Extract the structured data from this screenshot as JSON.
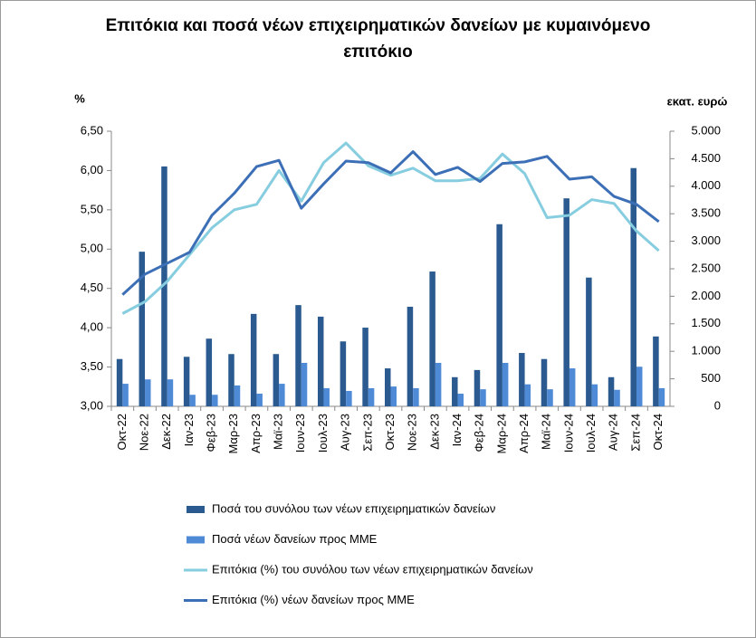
{
  "chart_data": {
    "type": "combo",
    "title": "Επιτόκια και ποσά νέων επιχειρηματικών δανείων με κυμαινόμενο επιτόκιο",
    "y_label": "%",
    "y2_label": "εκατ. ευρώ",
    "categories": [
      "Οκτ-22",
      "Νοε-22",
      "Δεκ-22",
      "Ιαν-23",
      "Φεβ-23",
      "Μαρ-23",
      "Απρ-23",
      "Μαϊ-23",
      "Ιουν-23",
      "Ιουλ-23",
      "Αυγ-23",
      "Σεπ-23",
      "Οκτ-23",
      "Νοε-23",
      "Δεκ-23",
      "Ιαν-24",
      "Φεβ-24",
      "Μαρ-24",
      "Απρ-24",
      "Μαϊ-24",
      "Ιουν-24",
      "Ιουλ-24",
      "Αυγ-24",
      "Σεπ-24",
      "Οκτ-24"
    ],
    "ylim": [
      3,
      6.5
    ],
    "yticks": [
      {
        "value": 3,
        "label": "3,00"
      },
      {
        "value": 3.5,
        "label": "3,50"
      },
      {
        "value": 4,
        "label": "4,00"
      },
      {
        "value": 4.5,
        "label": "4,50"
      },
      {
        "value": 5,
        "label": "5,00"
      },
      {
        "value": 5.5,
        "label": "5,50"
      },
      {
        "value": 6,
        "label": "6,00"
      },
      {
        "value": 6.5,
        "label": "6,50"
      }
    ],
    "y2lim": [
      0,
      5000
    ],
    "y2ticks": [
      0,
      500,
      {
        "value": 1000,
        "label": "1.000"
      },
      {
        "value": 1500,
        "label": "1.500"
      },
      {
        "value": 2000,
        "label": "2.000"
      },
      {
        "value": 2500,
        "label": "2.500"
      },
      {
        "value": 3000,
        "label": "3.000"
      },
      {
        "value": 3500,
        "label": "3.500"
      },
      {
        "value": 4000,
        "label": "4.000"
      },
      {
        "value": 4500,
        "label": "4.500"
      },
      {
        "value": 5000,
        "label": "5.000"
      }
    ],
    "series": [
      {
        "name": "Ποσά του συνόλου των νέων επιχειρηματικών δανείων",
        "type": "bar",
        "axis": "y2",
        "color": "#2a5a8f",
        "values": [
          860,
          2810,
          4360,
          900,
          1230,
          950,
          1680,
          950,
          1840,
          1630,
          1180,
          1430,
          690,
          1810,
          2450,
          530,
          660,
          3310,
          970,
          860,
          3780,
          2340,
          530,
          4330,
          1270
        ]
      },
      {
        "name": "Ποσά νέων δανείων προς ΜΜΕ",
        "type": "bar",
        "axis": "y2",
        "color": "#4f8ad6",
        "values": [
          410,
          490,
          490,
          210,
          210,
          380,
          230,
          410,
          790,
          330,
          280,
          330,
          360,
          330,
          790,
          230,
          310,
          790,
          400,
          310,
          690,
          400,
          300,
          720,
          330
        ]
      },
      {
        "name": "Επιτόκια (%) του συνόλου των νέων επιχειρηματικών δανείων",
        "type": "line",
        "color": "#86cde0",
        "values": [
          4.18,
          4.33,
          4.59,
          4.93,
          5.27,
          5.5,
          5.57,
          6.0,
          5.61,
          6.1,
          6.35,
          6.06,
          5.94,
          6.03,
          5.87,
          5.87,
          5.9,
          6.21,
          5.96,
          5.4,
          5.43,
          5.63,
          5.58,
          5.23,
          4.98
        ]
      },
      {
        "name": "Επιτόκια (%) νέων δανείων προς ΜΜΕ",
        "type": "line",
        "color": "#3c6fb6",
        "values": [
          4.42,
          4.68,
          4.82,
          4.96,
          5.43,
          5.71,
          6.05,
          6.13,
          5.52,
          5.83,
          6.12,
          6.1,
          5.97,
          6.24,
          5.95,
          6.04,
          5.86,
          6.09,
          6.11,
          6.18,
          5.89,
          5.92,
          5.67,
          5.57,
          5.35
        ]
      }
    ]
  }
}
